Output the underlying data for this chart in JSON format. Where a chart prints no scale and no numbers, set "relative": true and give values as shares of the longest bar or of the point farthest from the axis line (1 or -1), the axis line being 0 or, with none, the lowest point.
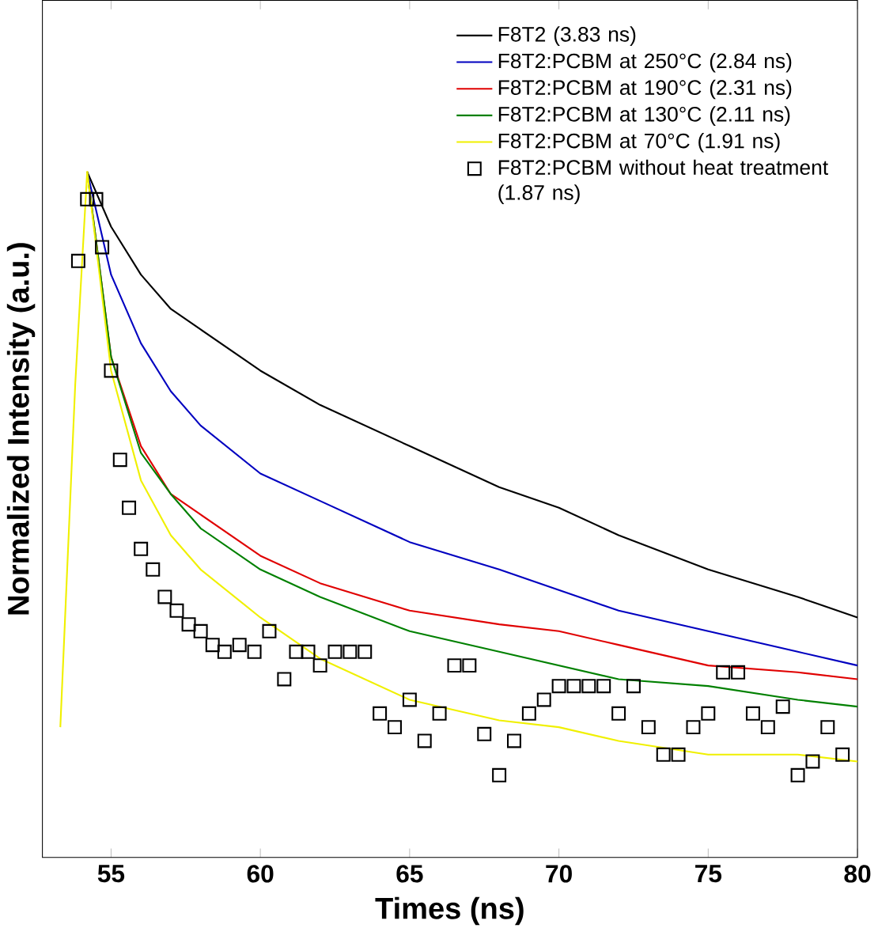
{
  "chart_data": {
    "type": "line",
    "relative": true,
    "xlabel": "Times (ns)",
    "ylabel": "Normalized Intensity (a.u.)",
    "xlim": [
      52.7,
      80
    ],
    "xticks": [
      55,
      60,
      65,
      70,
      75,
      80
    ],
    "legend": "top right",
    "x": [
      53.3,
      53.8,
      54.2,
      55,
      56,
      57,
      58,
      60,
      62,
      65,
      68,
      70,
      72,
      75,
      78,
      80
    ],
    "series": [
      {
        "name": "F8T2 (3.83 ns)",
        "color": "#000000",
        "values": [
          null,
          null,
          1.0,
          0.92,
          0.85,
          0.8,
          0.77,
          0.71,
          0.66,
          0.6,
          0.54,
          0.51,
          0.47,
          0.42,
          0.38,
          0.35
        ]
      },
      {
        "name": "F8T2:PCBM at 250°C (2.84 ns)",
        "color": "#0000c0",
        "values": [
          null,
          null,
          1.0,
          0.85,
          0.75,
          0.68,
          0.63,
          0.56,
          0.52,
          0.46,
          0.42,
          0.39,
          0.36,
          0.33,
          0.3,
          0.28
        ]
      },
      {
        "name": "F8T2:PCBM at 190°C (2.31 ns)",
        "color": "#e00000",
        "values": [
          null,
          null,
          1.0,
          0.73,
          0.6,
          0.53,
          0.5,
          0.44,
          0.4,
          0.36,
          0.34,
          0.33,
          0.31,
          0.28,
          0.27,
          0.26
        ]
      },
      {
        "name": "F8T2:PCBM at 130°C (2.11 ns)",
        "color": "#008000",
        "values": [
          null,
          null,
          1.0,
          0.73,
          0.59,
          0.53,
          0.48,
          0.42,
          0.38,
          0.33,
          0.3,
          0.28,
          0.26,
          0.25,
          0.23,
          0.22
        ]
      },
      {
        "name": "F8T2:PCBM at 70°C (1.91 ns)",
        "color": "#f0f000",
        "values": [
          0.19,
          0.69,
          1.0,
          0.71,
          0.55,
          0.47,
          0.42,
          0.35,
          0.29,
          0.23,
          0.2,
          0.19,
          0.17,
          0.15,
          0.15,
          0.14
        ]
      },
      {
        "name": "F8T2:PCBM without heat treatment (1.87 ns)",
        "type": "scatter",
        "marker": "square",
        "color": "#000000",
        "x": [
          53.9,
          54.2,
          54.5,
          54.7,
          55,
          55.3,
          55.6,
          56,
          56.4,
          56.8,
          57.2,
          57.6,
          58,
          58.4,
          58.8,
          59.3,
          59.8,
          60.3,
          60.8,
          61.2,
          61.6,
          62,
          62.5,
          63,
          63.5,
          64,
          64.5,
          65,
          65.5,
          66,
          66.5,
          67,
          67.5,
          68,
          68.5,
          69,
          69.5,
          70,
          70.5,
          71,
          71.5,
          72,
          72.5,
          73,
          73.5,
          74,
          74.5,
          75,
          75.5,
          76,
          76.5,
          77,
          77.5,
          78,
          78.5,
          79,
          79.5
        ],
        "values": [
          0.87,
          0.96,
          0.96,
          0.89,
          0.71,
          0.58,
          0.51,
          0.45,
          0.42,
          0.38,
          0.36,
          0.34,
          0.33,
          0.31,
          0.3,
          0.31,
          0.3,
          0.33,
          0.26,
          0.3,
          0.3,
          0.28,
          0.3,
          0.3,
          0.3,
          0.21,
          0.19,
          0.23,
          0.17,
          0.21,
          0.28,
          0.28,
          0.18,
          0.12,
          0.17,
          0.21,
          0.23,
          0.25,
          0.25,
          0.25,
          0.25,
          0.21,
          0.25,
          0.19,
          0.15,
          0.15,
          0.19,
          0.21,
          0.27,
          0.27,
          0.21,
          0.19,
          0.22,
          0.12,
          0.14,
          0.19,
          0.15
        ]
      }
    ]
  }
}
